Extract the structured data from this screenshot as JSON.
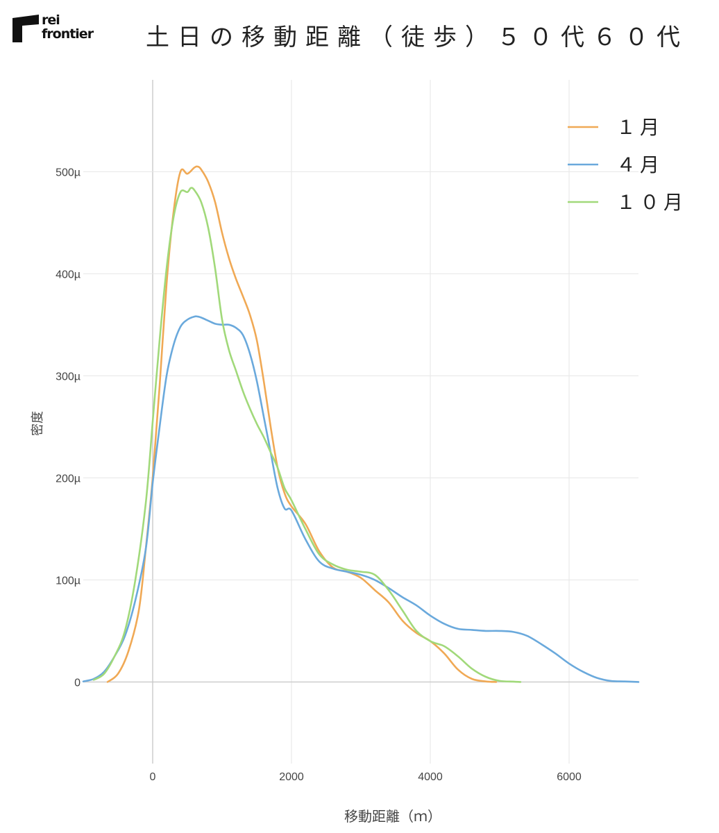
{
  "logo": {
    "line1": "rei",
    "line2": "frontier"
  },
  "chart_data": {
    "type": "line",
    "title": "土日の移動距離（徒歩）５０代６０代",
    "xlabel": "移動距離（ｍ）",
    "ylabel": "密度",
    "xlim": [
      -1000,
      7000
    ],
    "ylim": [
      -8e-05,
      0.00059
    ],
    "x_ticks": [
      0,
      2000,
      4000,
      6000
    ],
    "x_tick_labels": [
      "0",
      "2000",
      "4000",
      "6000"
    ],
    "y_ticks": [
      0,
      0.0001,
      0.0002,
      0.0003,
      0.0004,
      0.0005
    ],
    "y_tick_labels": [
      "0",
      "100µ",
      "200µ",
      "300µ",
      "400µ",
      "500µ"
    ],
    "grid": true,
    "legend_position": "top-right",
    "series": [
      {
        "name": "１月",
        "color": "#f0a955",
        "x": [
          -650,
          -500,
          -350,
          -200,
          -100,
          0,
          100,
          200,
          300,
          400,
          500,
          600,
          650,
          700,
          800,
          900,
          1000,
          1100,
          1200,
          1300,
          1400,
          1500,
          1600,
          1700,
          1800,
          1900,
          2000,
          2200,
          2400,
          2600,
          2800,
          3000,
          3200,
          3400,
          3600,
          3800,
          4000,
          4200,
          4400,
          4600,
          4800,
          4950
        ],
        "y": [
          0.0,
          8e-06,
          3e-05,
          7e-05,
          0.00013,
          0.0002,
          0.00029,
          0.00039,
          0.00046,
          0.0005,
          0.000498,
          0.000504,
          0.000505,
          0.000502,
          0.00049,
          0.00047,
          0.00044,
          0.000415,
          0.000395,
          0.000378,
          0.00036,
          0.000335,
          0.000295,
          0.00025,
          0.00021,
          0.000185,
          0.000172,
          0.000155,
          0.000128,
          0.000112,
          0.000108,
          0.000102,
          9e-05,
          7.8e-05,
          6e-05,
          4.8e-05,
          4e-05,
          2.8e-05,
          1.2e-05,
          3e-06,
          5e-07,
          0.0
        ]
      },
      {
        "name": "４月",
        "color": "#6aa9dc",
        "x": [
          -1000,
          -850,
          -700,
          -550,
          -400,
          -250,
          -100,
          0,
          100,
          200,
          300,
          400,
          500,
          600,
          650,
          700,
          800,
          900,
          1000,
          1100,
          1200,
          1300,
          1400,
          1500,
          1600,
          1700,
          1800,
          1900,
          2000,
          2200,
          2400,
          2600,
          2800,
          3000,
          3200,
          3400,
          3600,
          3800,
          4000,
          4200,
          4400,
          4600,
          4800,
          5000,
          5200,
          5400,
          5600,
          5800,
          6000,
          6200,
          6400,
          6600,
          6800,
          7000
        ],
        "y": [
          5e-07,
          3e-06,
          1e-05,
          2.5e-05,
          4.5e-05,
          8e-05,
          0.00013,
          0.000195,
          0.00025,
          0.0003,
          0.00033,
          0.000348,
          0.000355,
          0.000358,
          0.000358,
          0.000357,
          0.000354,
          0.000351,
          0.00035,
          0.00035,
          0.000347,
          0.00034,
          0.000322,
          0.000295,
          0.00026,
          0.000225,
          0.00019,
          0.00017,
          0.000168,
          0.00014,
          0.000118,
          0.000111,
          0.000108,
          0.000105,
          0.0001,
          9.2e-05,
          8.3e-05,
          7.5e-05,
          6.5e-05,
          5.7e-05,
          5.2e-05,
          5.1e-05,
          5e-05,
          5e-05,
          4.9e-05,
          4.5e-05,
          3.7e-05,
          2.8e-05,
          1.8e-05,
          1e-05,
          4e-06,
          1e-06,
          5e-07,
          0.0
        ]
      },
      {
        "name": "１０月",
        "color": "#a1d97a",
        "x": [
          -850,
          -700,
          -550,
          -400,
          -250,
          -100,
          0,
          100,
          200,
          300,
          400,
          500,
          550,
          600,
          700,
          800,
          900,
          1000,
          1100,
          1200,
          1300,
          1400,
          1500,
          1600,
          1700,
          1800,
          1900,
          2000,
          2200,
          2400,
          2600,
          2800,
          3000,
          3200,
          3400,
          3600,
          3800,
          4000,
          4200,
          4400,
          4600,
          4800,
          5000,
          5200,
          5300
        ],
        "y": [
          2e-06,
          8e-06,
          2.5e-05,
          5e-05,
          0.0001,
          0.000175,
          0.000255,
          0.000335,
          0.000405,
          0.000455,
          0.00048,
          0.00048,
          0.000484,
          0.000482,
          0.00047,
          0.000445,
          0.000405,
          0.000355,
          0.000325,
          0.000305,
          0.000285,
          0.000268,
          0.000253,
          0.00024,
          0.000225,
          0.00021,
          0.00019,
          0.000178,
          0.00015,
          0.000125,
          0.000115,
          0.00011,
          0.000108,
          0.000105,
          9e-05,
          7e-05,
          5e-05,
          4e-05,
          3.5e-05,
          2.5e-05,
          1.3e-05,
          5e-06,
          1e-06,
          3e-07,
          0.0
        ]
      }
    ]
  }
}
